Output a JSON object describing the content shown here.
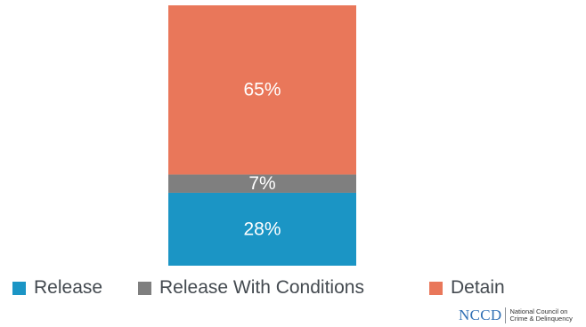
{
  "chart_data": {
    "type": "bar",
    "stacked": true,
    "categories": [
      ""
    ],
    "series": [
      {
        "name": "Release",
        "values": [
          28
        ],
        "label": "28%",
        "color": "#1b95c5"
      },
      {
        "name": "Release With Conditions",
        "values": [
          7
        ],
        "label": "7%",
        "color": "#7f7f7f"
      },
      {
        "name": "Detain",
        "values": [
          65
        ],
        "label": "65%",
        "color": "#e9775a"
      }
    ],
    "ylim": [
      0,
      100
    ],
    "grid": false,
    "legend_position": "bottom"
  },
  "logo": {
    "mark": "NCCD",
    "line1": "National Council on",
    "line2": "Crime & Delinquency",
    "color": "#2f6fb4"
  }
}
